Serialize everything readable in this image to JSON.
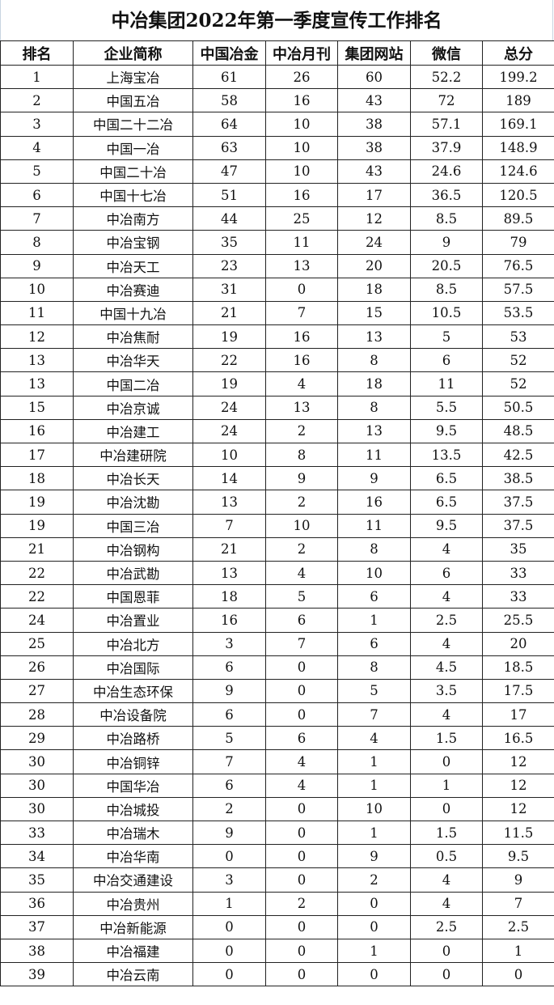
{
  "title": "中冶集团2022年第一季度宣传工作排名",
  "headers": [
    "排名",
    "企业简称",
    "中国冶金",
    "中冶月刊",
    "集团网站",
    "微信",
    "总分"
  ],
  "rows": [
    [
      "1",
      "上海宝冶",
      "61",
      "26",
      "60",
      "52.2",
      "199.2"
    ],
    [
      "2",
      "中国五冶",
      "58",
      "16",
      "43",
      "72",
      "189"
    ],
    [
      "3",
      "中国二十二冶",
      "64",
      "10",
      "38",
      "57.1",
      "169.1"
    ],
    [
      "4",
      "中国一冶",
      "63",
      "10",
      "38",
      "37.9",
      "148.9"
    ],
    [
      "5",
      "中国二十冶",
      "47",
      "10",
      "43",
      "24.6",
      "124.6"
    ],
    [
      "6",
      "中国十七冶",
      "51",
      "16",
      "17",
      "36.5",
      "120.5"
    ],
    [
      "7",
      "中冶南方",
      "44",
      "25",
      "12",
      "8.5",
      "89.5"
    ],
    [
      "8",
      "中冶宝钢",
      "35",
      "11",
      "24",
      "9",
      "79"
    ],
    [
      "9",
      "中冶天工",
      "23",
      "13",
      "20",
      "20.5",
      "76.5"
    ],
    [
      "10",
      "中冶赛迪",
      "31",
      "0",
      "18",
      "8.5",
      "57.5"
    ],
    [
      "11",
      "中国十九冶",
      "21",
      "7",
      "15",
      "10.5",
      "53.5"
    ],
    [
      "12",
      "中冶焦耐",
      "19",
      "16",
      "13",
      "5",
      "53"
    ],
    [
      "13",
      "中冶华天",
      "22",
      "16",
      "8",
      "6",
      "52"
    ],
    [
      "13",
      "中国二冶",
      "19",
      "4",
      "18",
      "11",
      "52"
    ],
    [
      "15",
      "中冶京诚",
      "24",
      "13",
      "8",
      "5.5",
      "50.5"
    ],
    [
      "16",
      "中冶建工",
      "24",
      "2",
      "13",
      "9.5",
      "48.5"
    ],
    [
      "17",
      "中冶建研院",
      "10",
      "8",
      "11",
      "13.5",
      "42.5"
    ],
    [
      "18",
      "中冶长天",
      "14",
      "9",
      "9",
      "6.5",
      "38.5"
    ],
    [
      "19",
      "中冶沈勘",
      "13",
      "2",
      "16",
      "6.5",
      "37.5"
    ],
    [
      "19",
      "中国三冶",
      "7",
      "10",
      "11",
      "9.5",
      "37.5"
    ],
    [
      "21",
      "中冶钢构",
      "21",
      "2",
      "8",
      "4",
      "35"
    ],
    [
      "22",
      "中冶武勘",
      "13",
      "4",
      "10",
      "6",
      "33"
    ],
    [
      "22",
      "中国恩菲",
      "18",
      "5",
      "6",
      "4",
      "33"
    ],
    [
      "24",
      "中冶置业",
      "16",
      "6",
      "1",
      "2.5",
      "25.5"
    ],
    [
      "25",
      "中冶北方",
      "3",
      "7",
      "6",
      "4",
      "20"
    ],
    [
      "26",
      "中冶国际",
      "6",
      "0",
      "8",
      "4.5",
      "18.5"
    ],
    [
      "27",
      "中冶生态环保",
      "9",
      "0",
      "5",
      "3.5",
      "17.5"
    ],
    [
      "28",
      "中冶设备院",
      "6",
      "0",
      "7",
      "4",
      "17"
    ],
    [
      "29",
      "中冶路桥",
      "5",
      "6",
      "4",
      "1.5",
      "16.5"
    ],
    [
      "30",
      "中冶铜锌",
      "7",
      "4",
      "1",
      "0",
      "12"
    ],
    [
      "30",
      "中国华冶",
      "6",
      "4",
      "1",
      "1",
      "12"
    ],
    [
      "30",
      "中冶城投",
      "2",
      "0",
      "10",
      "0",
      "12"
    ],
    [
      "33",
      "中冶瑞木",
      "9",
      "0",
      "1",
      "1.5",
      "11.5"
    ],
    [
      "34",
      "中冶华南",
      "0",
      "0",
      "9",
      "0.5",
      "9.5"
    ],
    [
      "35",
      "中冶交通建设",
      "3",
      "0",
      "2",
      "4",
      "9"
    ],
    [
      "36",
      "中冶贵州",
      "1",
      "2",
      "0",
      "4",
      "7"
    ],
    [
      "37",
      "中冶新能源",
      "0",
      "0",
      "0",
      "2.5",
      "2.5"
    ],
    [
      "38",
      "中冶福建",
      "0",
      "0",
      "1",
      "0",
      "1"
    ],
    [
      "39",
      "中冶云南",
      "0",
      "0",
      "0",
      "0",
      "0"
    ]
  ]
}
